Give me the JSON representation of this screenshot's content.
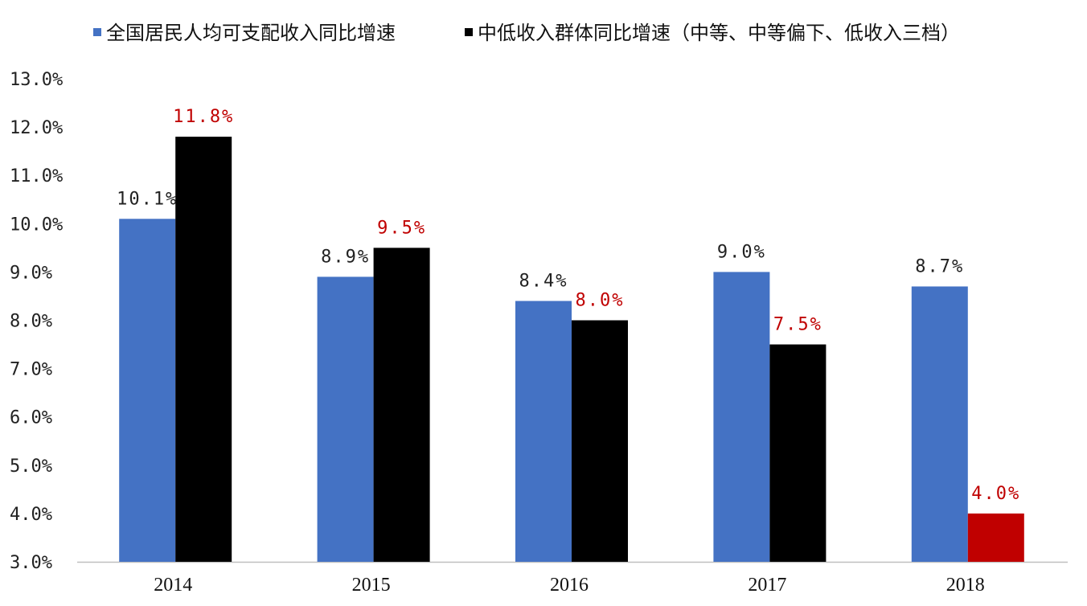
{
  "chart_data": {
    "type": "bar",
    "title": "",
    "xlabel": "",
    "ylabel": "",
    "categories": [
      "2014",
      "2015",
      "2016",
      "2017",
      "2018"
    ],
    "ylim": [
      3.0,
      13.0
    ],
    "yticks": [
      "3.0%",
      "4.0%",
      "5.0%",
      "6.0%",
      "7.0%",
      "8.0%",
      "9.0%",
      "10.0%",
      "11.0%",
      "12.0%",
      "13.0%"
    ],
    "grid": false,
    "legend_position": "top",
    "series": [
      {
        "name": "全国居民人均可支配收入同比增速",
        "color": "#4472C4",
        "label_color": "#222222",
        "values": [
          10.1,
          8.9,
          8.4,
          9.0,
          8.7
        ],
        "labels": [
          "10.1%",
          "8.9%",
          "8.4%",
          "9.0%",
          "8.7%"
        ]
      },
      {
        "name": "中低收入群体同比增速（中等、中等偏下、低收入三档）",
        "color": "#000000",
        "highlight_color": "#C00000",
        "label_color": "#C00000",
        "values": [
          11.8,
          9.5,
          8.0,
          7.5,
          4.0
        ],
        "labels": [
          "11.8%",
          "9.5%",
          "8.0%",
          "7.5%",
          "4.0%"
        ]
      }
    ]
  }
}
